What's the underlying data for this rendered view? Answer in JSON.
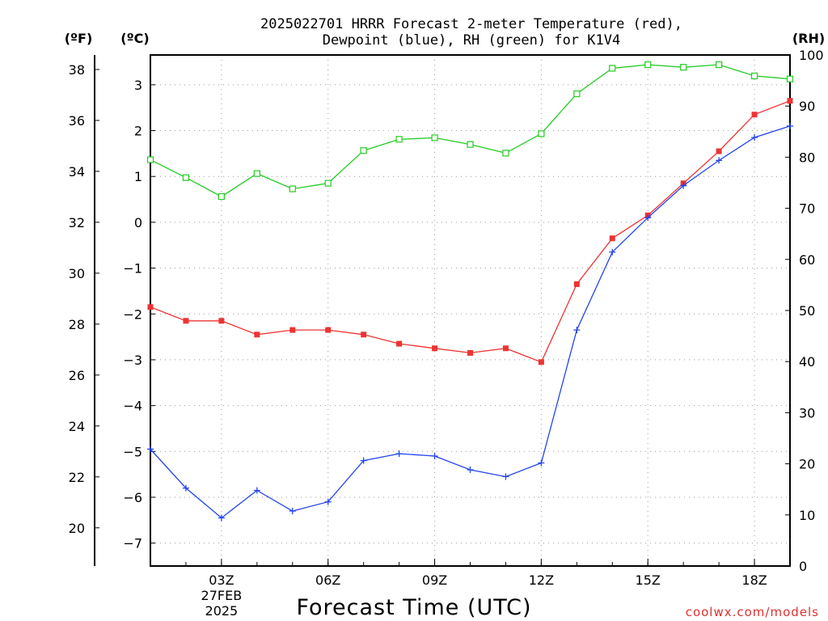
{
  "chart_data": {
    "type": "line",
    "title_line1": "2025022701 HRRR Forecast 2-meter Temperature (red),",
    "title_line2": "Dewpoint (blue), RH (green) for K1V4",
    "xlabel": "Forecast Time (UTC)",
    "watermark": "coolwx.com/models",
    "units": {
      "fahrenheit": "(ºF)",
      "celsius": "(ºC)",
      "rh": "(RH)"
    },
    "x_hours": [
      1,
      2,
      3,
      4,
      5,
      6,
      7,
      8,
      9,
      10,
      11,
      12,
      13,
      14,
      15,
      16,
      17,
      18,
      19
    ],
    "xlim": [
      1,
      19
    ],
    "x_ticks": [
      {
        "hour": 3,
        "label": "03Z",
        "sub1": "27FEB",
        "sub2": "2025"
      },
      {
        "hour": 6,
        "label": "06Z"
      },
      {
        "hour": 9,
        "label": "09Z"
      },
      {
        "hour": 12,
        "label": "12Z"
      },
      {
        "hour": 15,
        "label": "15Z"
      },
      {
        "hour": 18,
        "label": "18Z"
      }
    ],
    "celsius_axis": {
      "ylim": [
        -7.5,
        3.65
      ],
      "ticks": [
        "3",
        "2",
        "1",
        "0",
        "−1",
        "−2",
        "−3",
        "−4",
        "−5",
        "−6",
        "−7"
      ]
    },
    "fahrenheit_axis": {
      "ylim": [
        18.5,
        38.57
      ],
      "ticks": [
        "38",
        "36",
        "34",
        "32",
        "30",
        "28",
        "26",
        "24",
        "22",
        "20"
      ]
    },
    "rh_axis": {
      "ylim": [
        0,
        100
      ],
      "ticks": [
        "100",
        "90",
        "80",
        "70",
        "60",
        "50",
        "40",
        "30",
        "20",
        "10",
        "0"
      ]
    },
    "series": [
      {
        "name": "Temperature",
        "color": "#ee3333",
        "marker": "square-filled",
        "axis": "celsius",
        "values": [
          -1.85,
          -2.15,
          -2.15,
          -2.45,
          -2.35,
          -2.35,
          -2.45,
          -2.65,
          -2.75,
          -2.85,
          -2.75,
          -3.05,
          -1.35,
          -0.35,
          0.15,
          0.85,
          1.55,
          2.35,
          2.65
        ]
      },
      {
        "name": "Dewpoint",
        "color": "#2244ee",
        "marker": "plus",
        "axis": "celsius",
        "values": [
          -4.95,
          -5.8,
          -6.45,
          -5.85,
          -6.3,
          -6.1,
          -5.2,
          -5.05,
          -5.1,
          -5.4,
          -5.55,
          -5.25,
          -2.35,
          -0.65,
          0.1,
          0.8,
          1.35,
          1.85,
          2.1
        ]
      },
      {
        "name": "RH",
        "color": "#22cc22",
        "marker": "square-open",
        "axis": "rh",
        "values": [
          79.5,
          76,
          72.3,
          76.8,
          73.8,
          74.9,
          81.3,
          83.5,
          83.8,
          82.5,
          80.8,
          84.6,
          92.4,
          97.4,
          98.1,
          97.6,
          98.1,
          95.9,
          95.3
        ]
      }
    ]
  }
}
